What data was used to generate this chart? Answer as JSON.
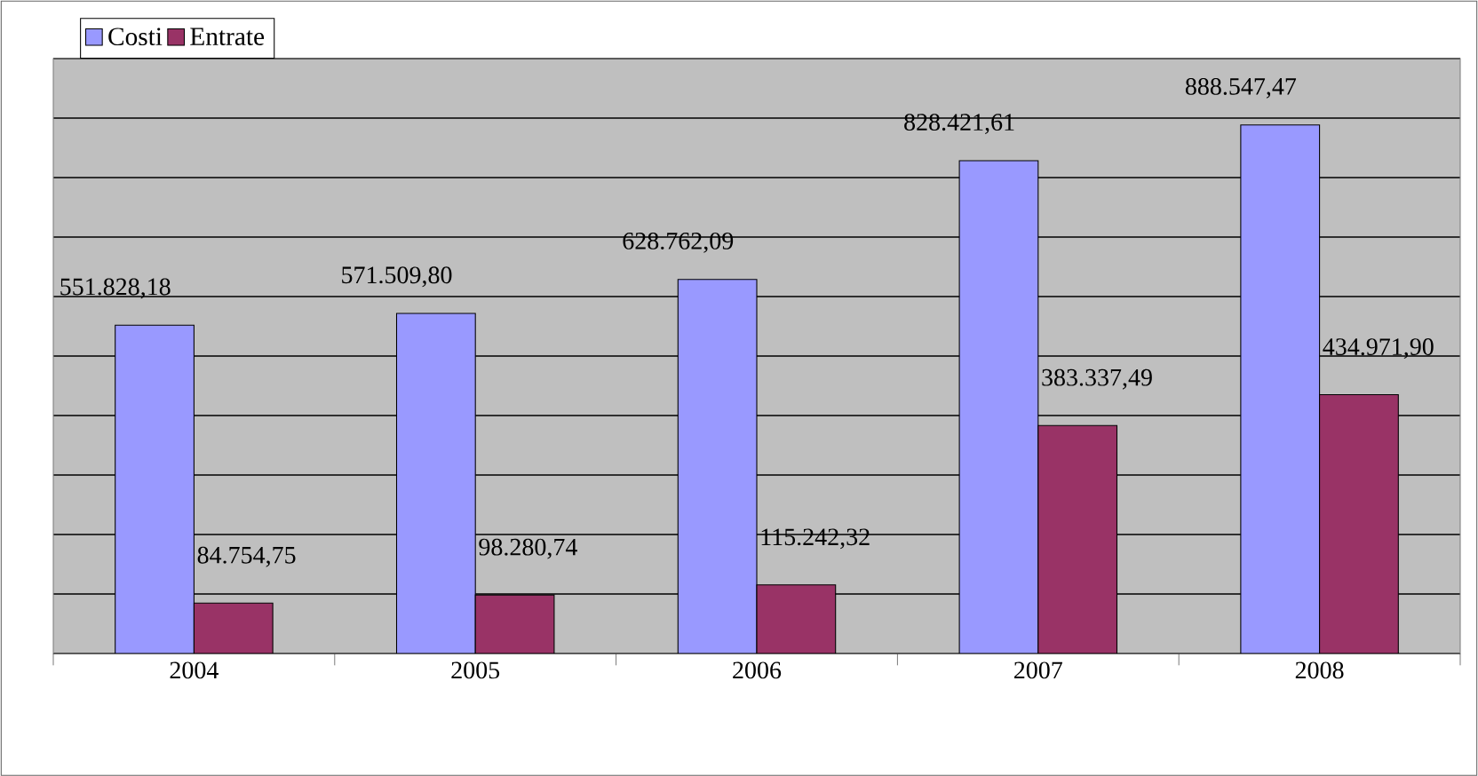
{
  "chart_data": {
    "type": "bar",
    "categories": [
      "2004",
      "2005",
      "2006",
      "2007",
      "2008"
    ],
    "series": [
      {
        "name": "Costi",
        "color": "#9999ff",
        "values": [
          551828.18,
          571509.8,
          628762.09,
          828421.61,
          888547.47
        ],
        "value_labels": [
          "551.828,18",
          "571.509,80",
          "628.762,09",
          "828.421,61",
          "888.547,47"
        ]
      },
      {
        "name": "Entrate",
        "color": "#993366",
        "values": [
          84754.75,
          98280.74,
          115242.32,
          383337.49,
          434971.9
        ],
        "value_labels": [
          "84.754,75",
          "98.280,74",
          "115.242,32",
          "383.337,49",
          "434.971,90"
        ]
      }
    ],
    "ylim": [
      0,
      1000000
    ],
    "yticks": [
      {
        "value": 0,
        "label": null
      },
      {
        "value": 100000,
        "label": null
      },
      {
        "value": 200000,
        "label": null
      },
      {
        "value": 300000,
        "label": null
      },
      {
        "value": 400000,
        "label": null
      },
      {
        "value": 500000,
        "label": null
      },
      {
        "value": 600000,
        "label": null
      },
      {
        "value": 700000,
        "label": null
      },
      {
        "value": 800000,
        "label": null
      },
      {
        "value": 900000,
        "label": null
      },
      {
        "value": 1000000,
        "label": null
      }
    ],
    "tick_labels": "x",
    "grid": "y",
    "legend": "top left"
  }
}
